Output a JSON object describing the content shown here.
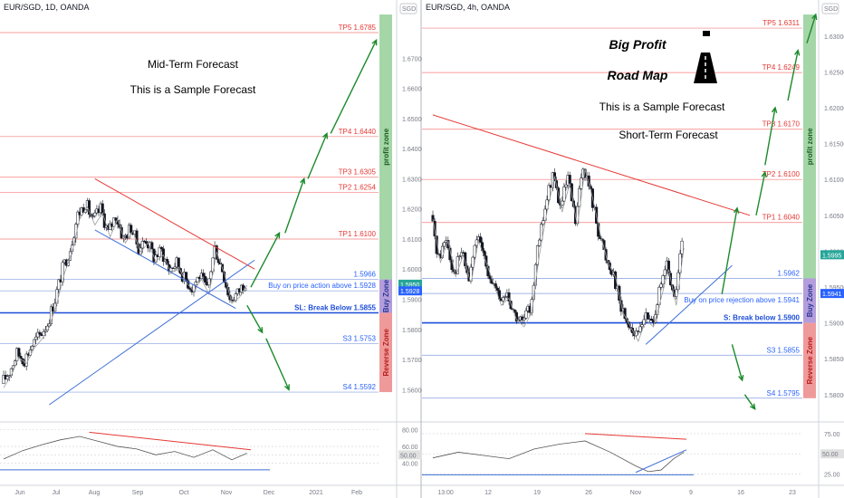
{
  "panels": [
    {
      "id": "left",
      "header": "EUR/SGD, 1D, OANDA",
      "currency_badge": "SGD",
      "annotations": [
        "Mid-Term Forecast",
        "This is a Sample Forecast"
      ],
      "x_ticks": [
        "Jun",
        "Jul",
        "Aug",
        "Sep",
        "Oct",
        "Nov",
        "Dec",
        "2021",
        "Feb"
      ],
      "y_ticks": [
        "1.67000",
        "1.66000",
        "1.65000",
        "1.64000",
        "1.63000",
        "1.62000",
        "1.61000",
        "1.60000",
        "1.59000",
        "1.58000",
        "1.57000",
        "1.56000"
      ],
      "y_range": [
        1.5505,
        1.6845
      ],
      "levels": [
        {
          "label": "TP5 1.6785",
          "price": 1.6785,
          "style": "red"
        },
        {
          "label": "TP4 1.6440",
          "price": 1.644,
          "style": "red"
        },
        {
          "label": "TP3 1.6305",
          "price": 1.6305,
          "style": "red"
        },
        {
          "label": "TP2 1.6254",
          "price": 1.6254,
          "style": "red"
        },
        {
          "label": "TP1 1.6100",
          "price": 1.61,
          "style": "red"
        },
        {
          "label": "1.5966",
          "price": 1.5966,
          "style": "blue"
        },
        {
          "label": "Buy on price action above 1.5928",
          "price": 1.5928,
          "style": "blue"
        },
        {
          "label": "SL: Break Below 1.5855",
          "price": 1.5855,
          "style": "sl"
        },
        {
          "label": "S3 1.5753",
          "price": 1.5753,
          "style": "blue"
        },
        {
          "label": "S4 1.5592",
          "price": 1.5592,
          "style": "blue"
        }
      ],
      "zones": {
        "profit": "profit zone",
        "buy": "Buy Zone",
        "reverse": "Reverse Zone"
      },
      "price_tags": [
        "1.5950",
        "1.5928"
      ],
      "indicator": {
        "ticks": [
          "80.00",
          "60.00",
          "50.00",
          "40.00"
        ],
        "value_tag": "50.00"
      }
    },
    {
      "id": "right",
      "header": "EUR/SGD, 4h, OANDA",
      "currency_badge": "SGD",
      "annotations": [
        "Big Profit",
        "Road Map",
        "This is a Sample Forecast",
        "Short-Term Forecast"
      ],
      "x_ticks": [
        "13:00",
        "12",
        "19",
        "26",
        "Nov",
        "9",
        "16",
        "23"
      ],
      "y_ticks": [
        "1.63000",
        "1.62500",
        "1.62000",
        "1.61500",
        "1.61000",
        "1.60500",
        "1.60000",
        "1.59500",
        "1.59000",
        "1.58500",
        "1.58000"
      ],
      "y_range": [
        1.5772,
        1.633
      ],
      "levels": [
        {
          "label": "TP5 1.6311",
          "price": 1.6311,
          "style": "red"
        },
        {
          "label": "TP4 1.6249",
          "price": 1.6249,
          "style": "red"
        },
        {
          "label": "TP3 1.6170",
          "price": 1.617,
          "style": "red"
        },
        {
          "label": "TP2 1.6100",
          "price": 1.61,
          "style": "red"
        },
        {
          "label": "TP1 1.6040",
          "price": 1.604,
          "style": "red"
        },
        {
          "label": "1.5962",
          "price": 1.5962,
          "style": "blue"
        },
        {
          "label": "Buy on price rejection above 1.5941",
          "price": 1.5941,
          "style": "blue"
        },
        {
          "label": "S: Break below 1.5900",
          "price": 1.59,
          "style": "sl"
        },
        {
          "label": "S3 1.5855",
          "price": 1.5855,
          "style": "blue"
        },
        {
          "label": "S4 1.5795",
          "price": 1.5795,
          "style": "blue"
        }
      ],
      "zones": {
        "profit": "profit zone",
        "buy": "Buy Zone",
        "reverse": "Reverse Zone"
      },
      "price_tags": [
        "1.5995",
        "1.5941"
      ],
      "indicator": {
        "ticks": [
          "75.00",
          "50.00",
          "25.00"
        ],
        "value_tag": "50.00"
      }
    }
  ],
  "chart_data": [
    {
      "type": "candlestick",
      "title": "EUR/SGD, 1D, OANDA",
      "ylim": [
        1.555,
        1.68
      ],
      "close_path": [
        [
          0,
          1.562
        ],
        [
          4,
          1.566
        ],
        [
          8,
          1.572
        ],
        [
          12,
          1.57
        ],
        [
          16,
          1.575
        ],
        [
          20,
          1.578
        ],
        [
          24,
          1.582
        ],
        [
          28,
          1.59
        ],
        [
          32,
          1.6
        ],
        [
          36,
          1.607
        ],
        [
          40,
          1.618
        ],
        [
          44,
          1.622
        ],
        [
          48,
          1.616
        ],
        [
          52,
          1.62
        ],
        [
          56,
          1.612
        ],
        [
          60,
          1.618
        ],
        [
          64,
          1.61
        ],
        [
          68,
          1.614
        ],
        [
          72,
          1.607
        ],
        [
          76,
          1.61
        ],
        [
          80,
          1.604
        ],
        [
          84,
          1.606
        ],
        [
          88,
          1.6
        ],
        [
          92,
          1.602
        ],
        [
          96,
          1.597
        ],
        [
          100,
          1.594
        ],
        [
          104,
          1.598
        ],
        [
          108,
          1.593
        ],
        [
          112,
          1.607
        ],
        [
          116,
          1.6
        ],
        [
          120,
          1.59
        ],
        [
          124,
          1.592
        ],
        [
          128,
          1.596
        ]
      ],
      "trend_lines": [
        {
          "name": "resistance",
          "color": "red",
          "from": [
            48,
            1.63
          ],
          "to": [
            132,
            1.6
          ]
        },
        {
          "name": "channel-low",
          "color": "blue",
          "from": [
            48,
            1.613
          ],
          "to": [
            122,
            1.587
          ]
        },
        {
          "name": "rising-support",
          "color": "blue",
          "from": [
            24,
            1.555
          ],
          "to": [
            132,
            1.603
          ]
        }
      ],
      "forecast_arrows": [
        {
          "from": [
            130,
            1.594
          ],
          "to": [
            145,
            1.612
          ]
        },
        {
          "from": [
            148,
            1.612
          ],
          "to": [
            158,
            1.63
          ]
        },
        {
          "from": [
            160,
            1.63
          ],
          "to": [
            170,
            1.645
          ]
        },
        {
          "from": [
            172,
            1.645
          ],
          "to": [
            196,
            1.676
          ]
        },
        {
          "from": [
            128,
            1.588
          ],
          "to": [
            136,
            1.579
          ]
        },
        {
          "from": [
            138,
            1.577
          ],
          "to": [
            150,
            1.56
          ]
        }
      ],
      "rsi": [
        [
          0,
          45
        ],
        [
          10,
          55
        ],
        [
          20,
          62
        ],
        [
          30,
          68
        ],
        [
          40,
          72
        ],
        [
          50,
          66
        ],
        [
          60,
          60
        ],
        [
          70,
          57
        ],
        [
          80,
          50
        ],
        [
          90,
          54
        ],
        [
          100,
          47
        ],
        [
          110,
          56
        ],
        [
          120,
          44
        ],
        [
          128,
          52
        ]
      ],
      "rsi_lines": [
        {
          "from": [
            45,
            77
          ],
          "to": [
            130,
            56
          ],
          "color": "red"
        }
      ]
    },
    {
      "type": "candlestick",
      "title": "EUR/SGD, 4h, OANDA",
      "ylim": [
        1.579,
        1.633
      ],
      "close_path": [
        [
          0,
          1.605
        ],
        [
          6,
          1.599
        ],
        [
          12,
          1.602
        ],
        [
          18,
          1.597
        ],
        [
          24,
          1.6
        ],
        [
          30,
          1.596
        ],
        [
          36,
          1.602
        ],
        [
          42,
          1.599
        ],
        [
          48,
          1.596
        ],
        [
          54,
          1.593
        ],
        [
          60,
          1.594
        ],
        [
          66,
          1.591
        ],
        [
          72,
          1.59
        ],
        [
          78,
          1.592
        ],
        [
          84,
          1.6
        ],
        [
          90,
          1.606
        ],
        [
          96,
          1.611
        ],
        [
          102,
          1.606
        ],
        [
          108,
          1.61
        ],
        [
          114,
          1.604
        ],
        [
          120,
          1.612
        ],
        [
          126,
          1.608
        ],
        [
          132,
          1.603
        ],
        [
          138,
          1.599
        ],
        [
          144,
          1.597
        ],
        [
          150,
          1.592
        ],
        [
          156,
          1.59
        ],
        [
          162,
          1.588
        ],
        [
          168,
          1.591
        ],
        [
          174,
          1.59
        ],
        [
          180,
          1.594
        ],
        [
          186,
          1.598
        ],
        [
          192,
          1.593
        ],
        [
          198,
          1.601
        ]
      ],
      "trend_lines": [
        {
          "name": "resistance",
          "color": "red",
          "from": [
            0,
            1.619
          ],
          "to": [
            250,
            1.605
          ]
        },
        {
          "name": "rising-support",
          "color": "blue",
          "from": [
            168,
            1.587
          ],
          "to": [
            236,
            1.598
          ]
        }
      ],
      "forecast_arrows": [
        {
          "from": [
            228,
            1.594
          ],
          "to": [
            240,
            1.606
          ]
        },
        {
          "from": [
            255,
            1.605
          ],
          "to": [
            262,
            1.611
          ]
        },
        {
          "from": [
            262,
            1.612
          ],
          "to": [
            270,
            1.62
          ]
        },
        {
          "from": [
            280,
            1.621
          ],
          "to": [
            288,
            1.628
          ]
        },
        {
          "from": [
            295,
            1.629
          ],
          "to": [
            302,
            1.633
          ]
        },
        {
          "from": [
            236,
            1.587
          ],
          "to": [
            244,
            1.582
          ]
        },
        {
          "from": [
            246,
            1.58
          ],
          "to": [
            254,
            1.578
          ]
        }
      ],
      "rsi": [
        [
          0,
          45
        ],
        [
          20,
          52
        ],
        [
          40,
          48
        ],
        [
          60,
          44
        ],
        [
          80,
          56
        ],
        [
          100,
          62
        ],
        [
          120,
          66
        ],
        [
          140,
          52
        ],
        [
          160,
          35
        ],
        [
          170,
          28
        ],
        [
          180,
          30
        ],
        [
          190,
          44
        ],
        [
          198,
          52
        ]
      ],
      "rsi_lines": [
        {
          "from": [
            120,
            75
          ],
          "to": [
            200,
            68
          ],
          "color": "red"
        },
        {
          "from": [
            160,
            27
          ],
          "to": [
            200,
            55
          ],
          "color": "blue"
        }
      ]
    }
  ]
}
